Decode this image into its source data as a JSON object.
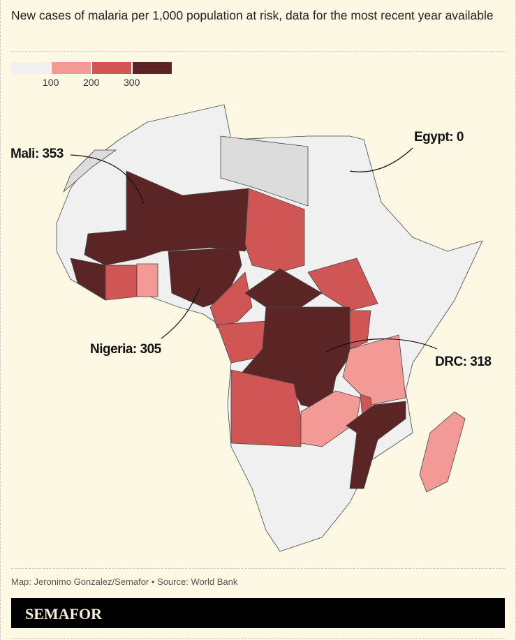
{
  "title": "New cases of malaria per 1,000 population at risk, data for the most recent year available",
  "legend": {
    "ticks": [
      "100",
      "200",
      "300"
    ],
    "colors": [
      "#f0f0f0",
      "#f49a96",
      "#d05555",
      "#5c2525"
    ]
  },
  "colors": {
    "no_data": "#dcdcdc",
    "background": "#fcf8e3"
  },
  "annotations": {
    "mali": "Mali: 353",
    "egypt": "Egypt: 0",
    "nigeria": "Nigeria: 305",
    "drc": "DRC: 318"
  },
  "credit": "Map: Jeronimo Gonzalez/Semafor • Source: World Bank",
  "logo": "SEMAFOR"
}
